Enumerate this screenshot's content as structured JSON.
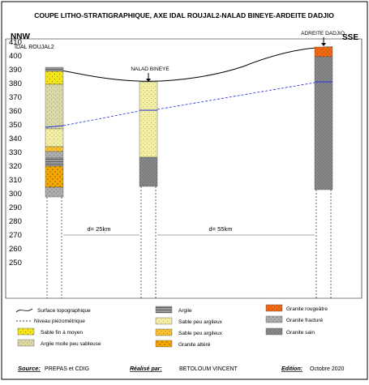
{
  "title": "COUPE LITHO-STRATIGRAPHIQUE, AXE IDAL ROUJAL2-NALAD BINEYE-ARDEITE DADJIO",
  "left_direction": "NNW",
  "right_direction": "SSE",
  "wells": {
    "left": "IDAL ROUJAL2",
    "middle": "NALAD BINEYE",
    "right": "ADREITE DADJIO"
  },
  "y_axis_ticks": [
    "410",
    "400",
    "390",
    "380",
    "370",
    "360",
    "350",
    "340",
    "330",
    "320",
    "310",
    "300",
    "290",
    "280",
    "270",
    "260",
    "250"
  ],
  "distances": {
    "first": "d= 25km",
    "second": "d= 55km"
  },
  "legend": {
    "surface": "Surface topographique",
    "niveau": "Niveau piézométrique",
    "sable_fin": "Sable fin à moyen",
    "argile_molle": "Argile molle peu sableuse",
    "argile": "Argile",
    "sable_peu_argileux_1": "Sable peu argileux",
    "sable_peu_argileux_2": "Sable peu argileux",
    "granite_altere": "Granite altéré",
    "granite_rougeatre": "Granite rougeâtre",
    "granite_fracture": "Granite fracturé",
    "granite_sain": "Granite sain"
  },
  "footer": {
    "source_label": "Source:",
    "source_value": "PREPAS et CDIG",
    "realise_label": "Réalisé par:",
    "realise_value": "BETOLOUM VINCENT",
    "edition_label": "Edition:",
    "edition_value": "Octobre 2020"
  },
  "colors": {
    "sable_fin": "#f5e61a",
    "argile_molle": "#ddd9a8",
    "argile": "#9b9b9b",
    "sable_peu_argileux_1": "#f3efa5",
    "sable_peu_argileux_2": "#f8c233",
    "granite_altere": "#f6a800",
    "granite_rougeatre": "#ef6a12",
    "granite_fracture": "#aeaeae",
    "granite_sain": "#888a8c",
    "water": "#1d2bd6"
  }
}
